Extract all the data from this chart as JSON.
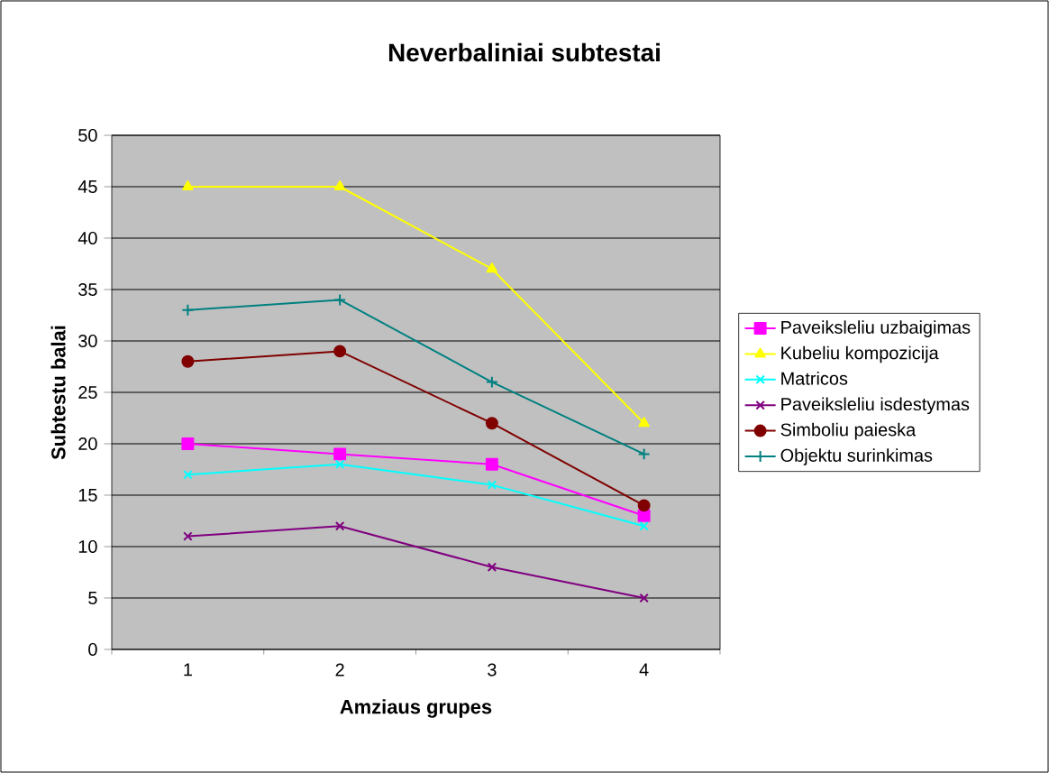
{
  "chart_data": {
    "type": "line",
    "title": "Neverbaliniai subtestai",
    "xlabel": "Amziaus grupes",
    "ylabel": "Subtestu balai",
    "categories": [
      "1",
      "2",
      "3",
      "4"
    ],
    "ylim": [
      0,
      50
    ],
    "yticks": [
      0,
      5,
      10,
      15,
      20,
      25,
      30,
      35,
      40,
      45,
      50
    ],
    "grid": "y",
    "legend": "right",
    "line_style": "solid",
    "series": [
      {
        "name": "Paveiksleliu uzbaigimas",
        "color": "#ff00ff",
        "marker": "square",
        "values": [
          20,
          19,
          18,
          13
        ]
      },
      {
        "name": "Kubeliu kompozicija",
        "color": "#ffff00",
        "marker": "triangle",
        "values": [
          45,
          45,
          37,
          22
        ]
      },
      {
        "name": "Matricos",
        "color": "#00ffff",
        "marker": "cross",
        "values": [
          17,
          18,
          16,
          12
        ]
      },
      {
        "name": "Paveiksleliu isdestymas",
        "color": "#800080",
        "marker": "cross",
        "values": [
          11,
          12,
          8,
          5
        ]
      },
      {
        "name": "Simboliu paieska",
        "color": "#800000",
        "marker": "circle",
        "values": [
          28,
          29,
          22,
          14
        ]
      },
      {
        "name": "Objektu surinkimas",
        "color": "#008080",
        "marker": "plus",
        "values": [
          33,
          34,
          26,
          19
        ]
      }
    ]
  }
}
